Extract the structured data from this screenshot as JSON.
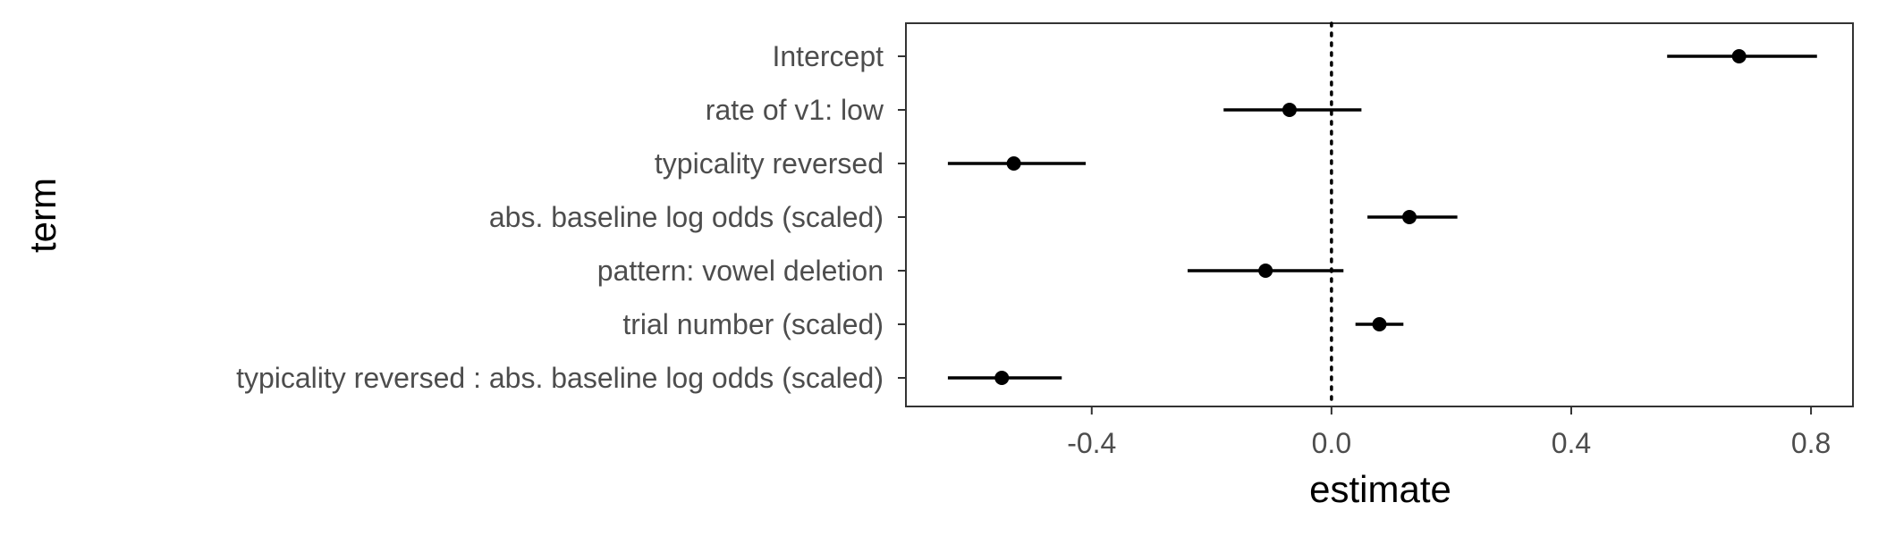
{
  "chart_data": {
    "type": "scatter",
    "subtype": "coefficient-plot",
    "title": "",
    "xlabel": "estimate",
    "ylabel": "term",
    "xlim": [
      -0.71,
      0.87
    ],
    "xticks": [
      -0.4,
      0.0,
      0.4,
      0.8
    ],
    "xtick_labels": [
      "-0.4",
      "0.0",
      "0.4",
      "0.8"
    ],
    "reference_line": 0,
    "grid": false,
    "legend": "none",
    "terms": [
      "Intercept",
      "rate of v1: low",
      "typicality reversed",
      "abs. baseline log odds (scaled)",
      "pattern: vowel deletion",
      "trial number (scaled)",
      "typicality reversed : abs. baseline log odds (scaled)"
    ],
    "estimates": [
      0.68,
      -0.07,
      -0.53,
      0.13,
      -0.11,
      0.08,
      -0.55
    ],
    "lower": [
      0.56,
      -0.18,
      -0.64,
      0.06,
      -0.24,
      0.04,
      -0.64
    ],
    "upper": [
      0.81,
      0.05,
      -0.41,
      0.21,
      0.02,
      0.12,
      -0.45
    ]
  },
  "colors": {
    "panel_border": "#333333",
    "ticks": "#333333",
    "tick_text": "#4d4d4d",
    "points": "#000000",
    "title_text": "#000000"
  }
}
